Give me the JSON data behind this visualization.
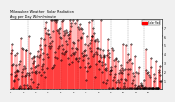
{
  "title": "Milwaukee Weather  Solar Radiation",
  "subtitle": "Avg per Day W/m²/minute",
  "bg_color": "#f0f0f0",
  "plot_bg": "#ffffff",
  "bar_color": "#ff0000",
  "dot_color": "#000000",
  "grid_color": "#999999",
  "ylim": [
    0,
    8
  ],
  "ytick_labels": [
    "1",
    "2",
    "3",
    "4",
    "5",
    "6",
    "7"
  ],
  "legend_color": "#ff0000",
  "legend_label": "Solar Rad",
  "n_points": 365,
  "seed": 0
}
